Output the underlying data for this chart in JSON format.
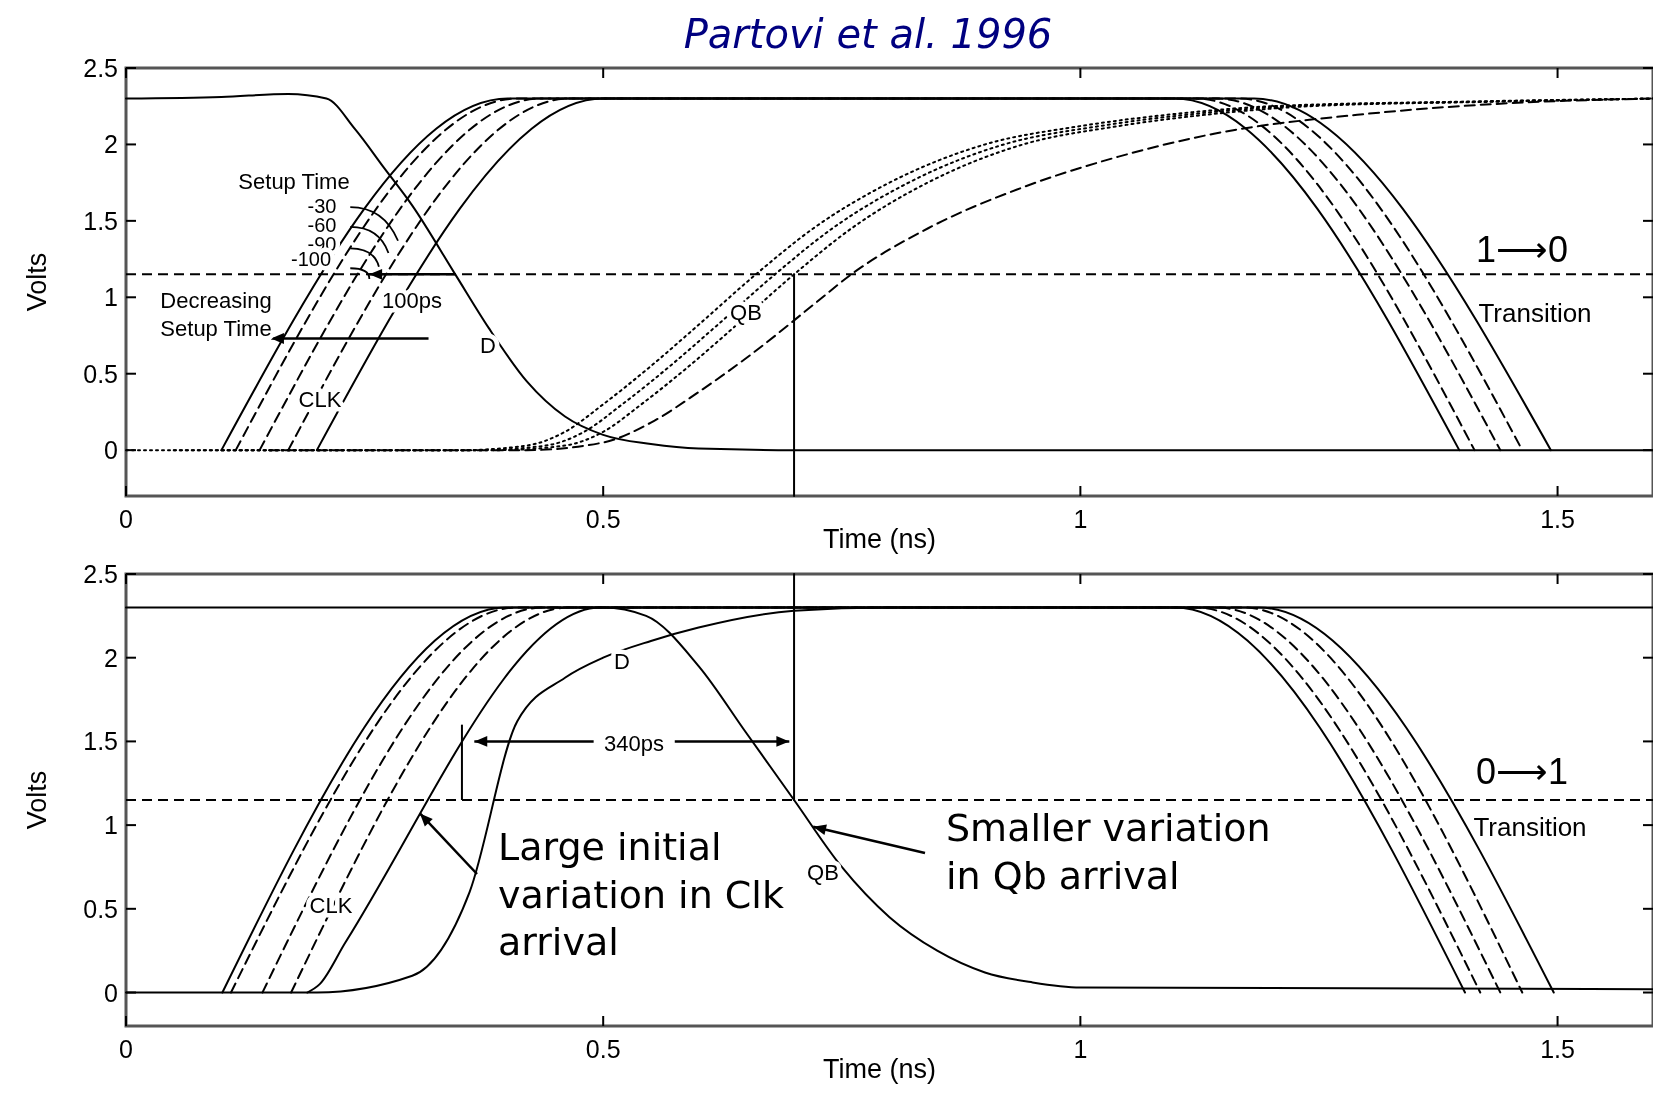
{
  "chart_data": [
    {
      "type": "line",
      "title": "Partovi et al. 1996",
      "xlabel": "Time (ns)",
      "ylabel": "Volts",
      "xlim": [
        0,
        1.6
      ],
      "ylim": [
        -0.3,
        2.5
      ],
      "xticks": [
        0,
        0.5,
        1,
        1.5
      ],
      "yticks": [
        0,
        0.5,
        1,
        1.5,
        2,
        2.5
      ],
      "grid": false,
      "ref_lines": [
        {
          "axis": "y",
          "value": 1.15,
          "color": "#000000",
          "line_style": "dashed"
        }
      ],
      "series": [
        {
          "color": "#000000",
          "line_style": "solid",
          "x": [
            0.1,
            0.4,
            1.099,
            1.397
          ],
          "values": [
            0,
            2.3,
            2.3,
            0
          ]
        },
        {
          "color": "#000000",
          "line_style": "dashed",
          "x": [
            0.115,
            0.41,
            1.121,
            1.413
          ],
          "values": [
            0,
            2.3,
            2.3,
            0
          ]
        },
        {
          "color": "#000000",
          "line_style": "dashed",
          "x": [
            0.14,
            0.435,
            1.143,
            1.44
          ],
          "values": [
            0,
            2.3,
            2.3,
            0
          ]
        },
        {
          "color": "#000000",
          "line_style": "dashed",
          "x": [
            0.17,
            0.465,
            1.166,
            1.463
          ],
          "values": [
            0,
            2.3,
            2.3,
            0
          ]
        },
        {
          "color": "#000000",
          "line_style": "solid",
          "x": [
            0.2,
            0.5,
            1.182,
            1.493
          ],
          "values": [
            0,
            2.3,
            2.3,
            0
          ]
        },
        {
          "color": "#000000",
          "line_style": "solid",
          "x": [
            0,
            0.1,
            0.17,
            0.21,
            0.24,
            0.27,
            0.3,
            0.345,
            0.38,
            0.42,
            0.46,
            0.5,
            0.55,
            0.6,
            0.7,
            1.6
          ],
          "values": [
            2.3,
            2.31,
            2.33,
            2.3,
            2.1,
            1.85,
            1.6,
            1.15,
            0.8,
            0.45,
            0.22,
            0.1,
            0.04,
            0.01,
            0,
            0
          ]
        },
        {
          "color": "#000000",
          "line_style": "dotted",
          "x": [
            0,
            0.35,
            0.42,
            0.46,
            0.5,
            0.55,
            0.6,
            0.66,
            0.72,
            0.8,
            0.9,
            1.0,
            1.1,
            1.2,
            1.4,
            1.6
          ],
          "values": [
            0,
            0,
            0.03,
            0.12,
            0.3,
            0.55,
            0.82,
            1.15,
            1.45,
            1.75,
            2.0,
            2.12,
            2.2,
            2.25,
            2.28,
            2.3
          ]
        },
        {
          "color": "#000000",
          "line_style": "dotted",
          "x": [
            0.05,
            0.37,
            0.44,
            0.48,
            0.52,
            0.57,
            0.62,
            0.68,
            0.74,
            0.82,
            0.92,
            1.02,
            1.12,
            1.22,
            1.42,
            1.6
          ],
          "values": [
            0,
            0,
            0.03,
            0.12,
            0.3,
            0.55,
            0.82,
            1.15,
            1.45,
            1.75,
            2.0,
            2.12,
            2.2,
            2.25,
            2.28,
            2.3
          ]
        },
        {
          "color": "#000000",
          "line_style": "dotted",
          "x": [
            0.1,
            0.39,
            0.46,
            0.5,
            0.54,
            0.59,
            0.64,
            0.7,
            0.76,
            0.84,
            0.94,
            1.04,
            1.14,
            1.24,
            1.44,
            1.6
          ],
          "values": [
            0,
            0,
            0.03,
            0.12,
            0.3,
            0.55,
            0.82,
            1.15,
            1.45,
            1.75,
            2.0,
            2.12,
            2.2,
            2.25,
            2.28,
            2.3
          ]
        },
        {
          "color": "#000000",
          "line_style": "dashed",
          "x": [
            0.15,
            0.42,
            0.5,
            0.55,
            0.6,
            0.66,
            0.72,
            0.76,
            0.84,
            0.94,
            1.04,
            1.14,
            1.3,
            1.45,
            1.6
          ],
          "values": [
            0,
            0,
            0.05,
            0.18,
            0.38,
            0.65,
            0.95,
            1.15,
            1.45,
            1.72,
            1.92,
            2.07,
            2.2,
            2.27,
            2.3
          ]
        },
        {
          "color": "#000000",
          "line_style": "solid",
          "x": [
            0.7,
            0.7
          ],
          "values": [
            1.15,
            -0.3
          ]
        }
      ],
      "annotations": [
        "Setup Time",
        "-30",
        "-60",
        "-90",
        "-100",
        {
          "text": "100ps",
          "x": 0.345,
          "y": 1.15
        },
        "Decreasing\nSetup Time",
        "D",
        "CLK",
        "QB",
        "1⟶0",
        "Transition"
      ]
    },
    {
      "type": "line",
      "xlabel": "Time (ns)",
      "ylabel": "Volts",
      "xlim": [
        0,
        1.6
      ],
      "ylim": [
        -0.2,
        2.5
      ],
      "xticks": [
        0,
        0.5,
        1,
        1.5
      ],
      "yticks": [
        0,
        0.5,
        1,
        1.5,
        2,
        2.5
      ],
      "grid": false,
      "ref_lines": [
        {
          "axis": "y",
          "value": 1.15,
          "color": "#000000",
          "line_style": "dashed"
        }
      ],
      "series": [
        {
          "color": "#000000",
          "line_style": "solid",
          "x": [
            0.101,
            0.398,
            1.099,
            1.403
          ],
          "values": [
            0,
            2.3,
            2.3,
            0
          ]
        },
        {
          "color": "#000000",
          "line_style": "dashed",
          "x": [
            0.11,
            0.41,
            1.121,
            1.419
          ],
          "values": [
            0,
            2.3,
            2.3,
            0
          ]
        },
        {
          "color": "#000000",
          "line_style": "dashed",
          "x": [
            0.143,
            0.437,
            1.143,
            1.44
          ],
          "values": [
            0,
            2.3,
            2.3,
            0
          ]
        },
        {
          "color": "#000000",
          "line_style": "dashed",
          "x": [
            0.173,
            0.464,
            1.171,
            1.463
          ],
          "values": [
            0,
            2.3,
            2.3,
            0
          ]
        },
        {
          "color": "#000000",
          "line_style": "solid",
          "x": [
            0.19,
            0.203,
            0.23,
            0.497,
            1.187,
            1.496
          ],
          "values": [
            0,
            0.05,
            0.3,
            2.3,
            2.3,
            0
          ]
        },
        {
          "color": "#000000",
          "line_style": "solid",
          "x": [
            0,
            0.2,
            0.3,
            0.36,
            0.41,
            0.46,
            0.5,
            0.55,
            0.6,
            0.7,
            0.8,
            1.6
          ],
          "values": [
            0,
            0,
            0.1,
            0.6,
            1.62,
            1.88,
            2.0,
            2.1,
            2.18,
            2.28,
            2.3,
            2.3
          ]
        },
        {
          "color": "#000000",
          "line_style": "solid",
          "x": [
            0,
            0.5,
            0.545,
            0.6,
            0.65,
            0.7,
            0.75,
            0.8,
            0.85,
            0.9,
            0.95,
            1.0,
            1.6
          ],
          "values": [
            2.3,
            2.3,
            2.25,
            1.95,
            1.55,
            1.15,
            0.75,
            0.45,
            0.25,
            0.12,
            0.06,
            0.03,
            0.02
          ]
        },
        {
          "color": "#000000",
          "line_style": "solid",
          "x": [
            0.7,
            0.7
          ],
          "values": [
            2.5,
            1.15
          ]
        }
      ],
      "annotations": [
        "D",
        "340ps",
        "CLK",
        "QB",
        "0⟶1",
        "Transition",
        {
          "text": "Large initial\nvariation in Clk\narrival",
          "x": 0.308,
          "y": 1.07
        },
        {
          "text": "Smaller variation\nin Qb arrival",
          "x": 0.72,
          "y": 0.99
        }
      ]
    }
  ]
}
